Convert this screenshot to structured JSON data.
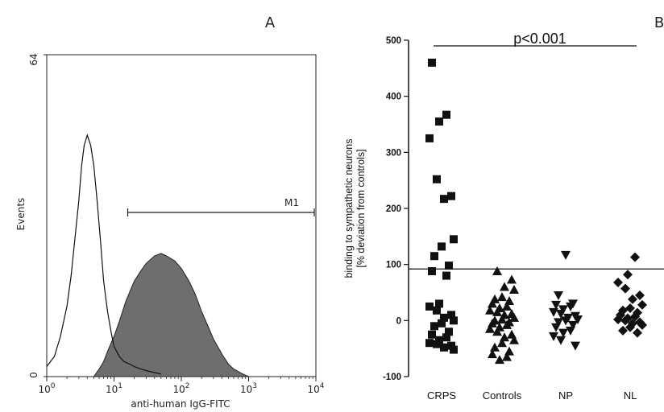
{
  "chart_data": [
    {
      "type": "area",
      "panel_label": "A",
      "xlabel": "anti-human IgG-FITC",
      "ylabel": "Events",
      "x_scale": "log",
      "xlim": [
        1,
        10000
      ],
      "ylim": [
        0,
        64
      ],
      "x_ticks": [
        {
          "base": "10",
          "exp": "0"
        },
        {
          "base": "10",
          "exp": "1"
        },
        {
          "base": "10",
          "exp": "2"
        },
        {
          "base": "10",
          "exp": "3"
        },
        {
          "base": "10",
          "exp": "4"
        }
      ],
      "y_ticks": [
        "0",
        "64"
      ],
      "marker": {
        "label": "M1",
        "x_range": [
          16,
          10000
        ]
      },
      "series": [
        {
          "kind": "outline",
          "x": [
            1,
            1.3,
            1.6,
            2,
            2.3,
            2.6,
            3,
            3.3,
            3.6,
            4,
            4.5,
            5,
            5.6,
            6.3,
            7,
            8,
            9,
            10,
            12,
            14,
            17,
            20,
            25,
            30,
            40,
            50
          ],
          "y": [
            2,
            4,
            8,
            14,
            20,
            27,
            35,
            42,
            46,
            48,
            46,
            42,
            35,
            27,
            19,
            13,
            9,
            6,
            4,
            3,
            2.5,
            2,
            1.5,
            1.2,
            0.8,
            0.5
          ]
        },
        {
          "kind": "filled",
          "x": [
            5,
            6,
            7,
            8,
            10,
            12,
            15,
            20,
            25,
            30,
            40,
            50,
            60,
            80,
            100,
            130,
            160,
            200,
            250,
            300,
            400,
            500,
            600,
            800,
            1000
          ],
          "y": [
            0,
            1.5,
            3,
            5,
            8,
            11,
            15,
            19,
            21,
            22.5,
            24,
            24.5,
            24,
            23,
            21.5,
            19,
            16.5,
            13,
            10,
            7.5,
            4.5,
            2.5,
            1.5,
            0.6,
            0
          ]
        }
      ]
    },
    {
      "type": "scatter",
      "panel_label": "B",
      "ylabel": [
        "binding to sympathetic neurons",
        "[% deviation from controls]"
      ],
      "ylim": [
        -100,
        500
      ],
      "y_ticks": [
        "500",
        "400",
        "300",
        "200",
        "100",
        "0",
        "-100"
      ],
      "categories": [
        "CRPS",
        "Controls",
        "NP",
        "NL"
      ],
      "significance": {
        "text": "p<0.001",
        "y": 490
      },
      "threshold": 92,
      "series": [
        {
          "category": "CRPS",
          "marker": "square",
          "values": [
            460,
            367,
            355,
            325,
            252,
            222,
            217,
            145,
            132,
            115,
            98,
            88,
            80,
            30,
            25,
            18,
            10,
            5,
            0,
            -5,
            -10,
            -20,
            -25,
            -30,
            -35,
            -40,
            -42,
            -45,
            -48,
            -52
          ]
        },
        {
          "category": "Controls",
          "marker": "triangle-up",
          "values": [
            88,
            73,
            60,
            55,
            42,
            38,
            35,
            30,
            25,
            22,
            18,
            15,
            12,
            10,
            5,
            2,
            0,
            -3,
            -5,
            -8,
            -12,
            -15,
            -20,
            -25,
            -30,
            -35,
            -40,
            -48,
            -55,
            -60,
            -65,
            -70
          ]
        },
        {
          "category": "NP",
          "marker": "triangle-down",
          "values": [
            117,
            45,
            30,
            28,
            25,
            20,
            15,
            12,
            8,
            5,
            2,
            0,
            -3,
            -8,
            -12,
            -18,
            -22,
            -28,
            -35,
            -45
          ]
        },
        {
          "category": "NL",
          "marker": "diamond",
          "values": [
            113,
            82,
            68,
            57,
            45,
            38,
            28,
            22,
            18,
            14,
            10,
            7,
            4,
            2,
            0,
            -3,
            -5,
            -8,
            -12,
            -18,
            -22
          ]
        }
      ]
    }
  ]
}
